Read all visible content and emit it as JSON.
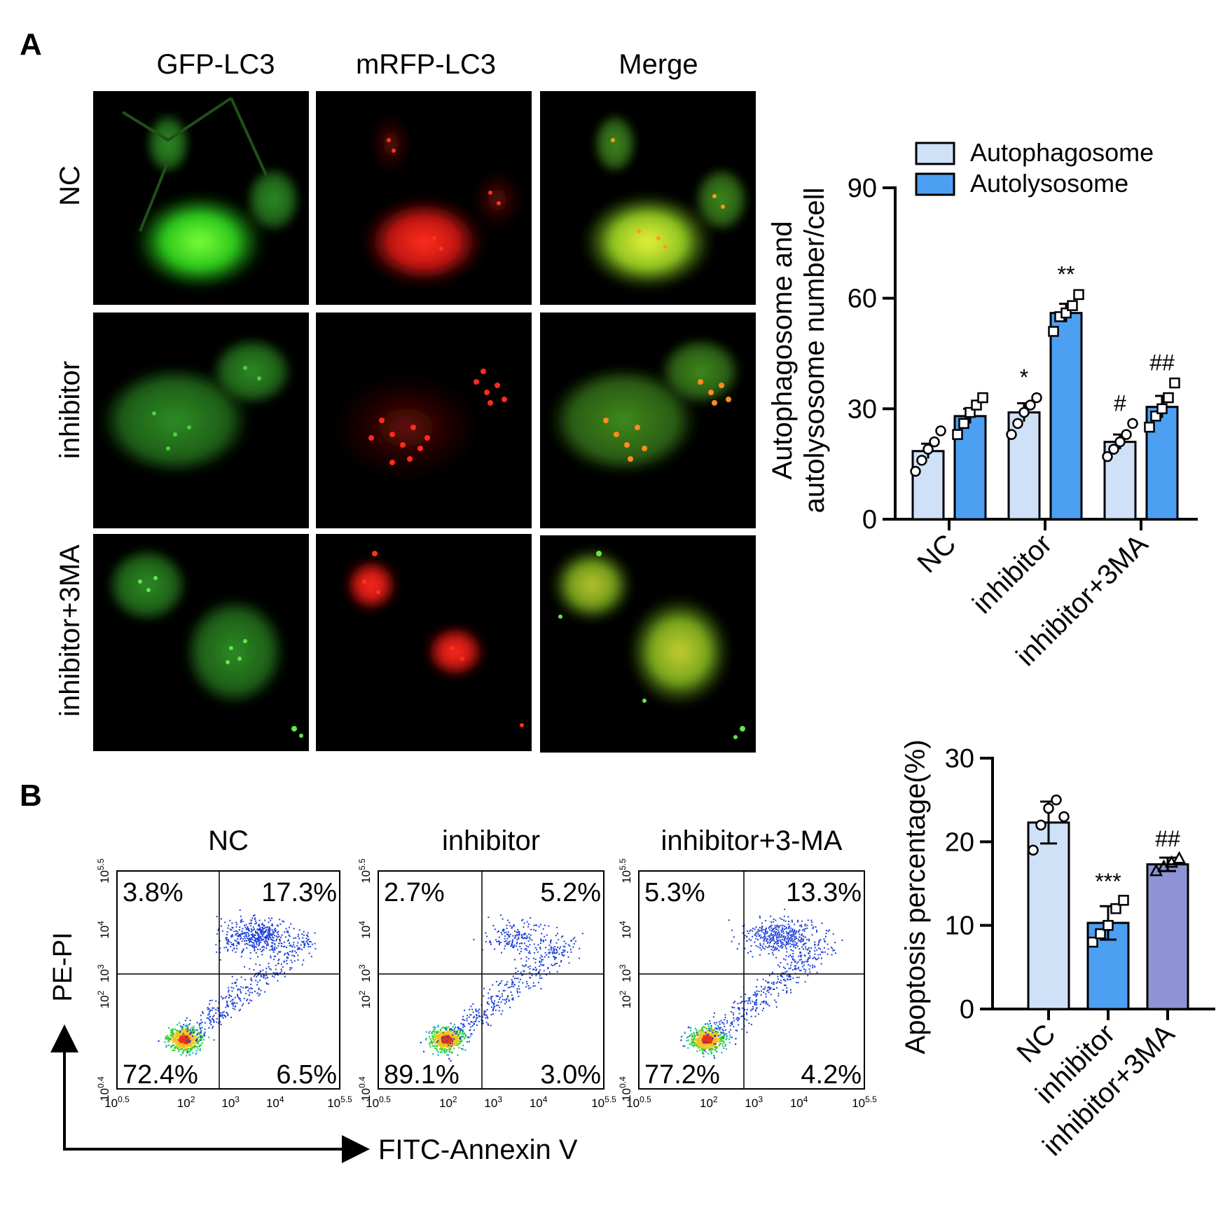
{
  "panel_a": {
    "label": "A",
    "columns": [
      "GFP-LC3",
      "mRFP-LC3",
      "Merge"
    ],
    "rows": [
      "NC",
      "inhibitor",
      "inhibitor+3MA"
    ]
  },
  "panel_b": {
    "label": "B",
    "flow_titles": [
      "NC",
      "inhibitor",
      "inhibitor+3-MA"
    ],
    "quadrants": [
      {
        "ul": "3.8%",
        "ur": "17.3%",
        "ll": "72.4%",
        "lr": "6.5%"
      },
      {
        "ul": "2.7%",
        "ur": "5.2%",
        "ll": "89.1%",
        "lr": "3.0%"
      },
      {
        "ul": "5.3%",
        "ur": "13.3%",
        "ll": "77.2%",
        "lr": "4.2%"
      }
    ],
    "flow_x_ticks": [
      {
        "base": "10",
        "exp": "0.5"
      },
      {
        "base": "10",
        "exp": "2"
      },
      {
        "base": "10",
        "exp": "3"
      },
      {
        "base": "10",
        "exp": "4"
      },
      {
        "base": "10",
        "exp": "5.5"
      }
    ],
    "flow_y_ticks": [
      {
        "base": "10",
        "exp": "0.4"
      },
      {
        "base": "10",
        "exp": "2"
      },
      {
        "base": "10",
        "exp": "3"
      },
      {
        "base": "10",
        "exp": "4"
      },
      {
        "base": "10",
        "exp": "5.5"
      }
    ],
    "flow_y_axis_label": "PE-PI",
    "flow_x_axis_label": "FITC-Annexin V"
  },
  "chart_data": [
    {
      "type": "bar",
      "categories": [
        "NC",
        "inhibitor",
        "inhibitor+3MA"
      ],
      "series": [
        {
          "name": "Autophagosome",
          "color": "#cfe1f7",
          "values": [
            18.5,
            29,
            21
          ],
          "errors": [
            2,
            2.5,
            2
          ],
          "points": [
            [
              13,
              16,
              19,
              21,
              24
            ],
            [
              23,
              26,
              29,
              31,
              33
            ],
            [
              17,
              19,
              21,
              23,
              26
            ]
          ]
        },
        {
          "name": "Autolysosome",
          "color": "#4d9ff2",
          "values": [
            28,
            56,
            30.5
          ],
          "errors": [
            2,
            2.5,
            3
          ],
          "points": [
            [
              23,
              26,
              29,
              31,
              33
            ],
            [
              51,
              55,
              56,
              58,
              61
            ],
            [
              25,
              28,
              30,
              33,
              37
            ]
          ]
        }
      ],
      "annotations": [
        {
          "category": 1,
          "series": 0,
          "text": "*"
        },
        {
          "category": 1,
          "series": 1,
          "text": "**"
        },
        {
          "category": 2,
          "series": 0,
          "text": "#"
        },
        {
          "category": 2,
          "series": 1,
          "text": "##"
        }
      ],
      "title": "",
      "xlabel": "",
      "ylabel": "Autophagosome and autolysosome number/cell",
      "ylabel_lines": [
        "Autophagosome and",
        "autolysosome number/cell"
      ],
      "ylim": [
        0,
        90
      ],
      "yticks": [
        0,
        30,
        60,
        90
      ],
      "legend": "top-right",
      "grid": false
    },
    {
      "type": "bar",
      "categories": [
        "NC",
        "inhibitor",
        "inhibitor+3MA"
      ],
      "series": [
        {
          "values": [
            22.3,
            10.3,
            17.3
          ],
          "errors": [
            2.5,
            2,
            0.8
          ],
          "colors": [
            "#cfe1f7",
            "#4d9ff2",
            "#8e94d3"
          ],
          "points": [
            [
              19,
              22,
              24,
              25,
              23
            ],
            [
              8,
              9,
              10,
              12,
              13
            ],
            [
              16.5,
              17,
              17.5,
              18
            ]
          ]
        }
      ],
      "annotations": [
        {
          "category": 1,
          "series": 0,
          "text": "***"
        },
        {
          "category": 2,
          "series": 0,
          "text": "##"
        }
      ],
      "title": "",
      "xlabel": "",
      "ylabel": "Apoptosis percentage(%)",
      "ylim": [
        0,
        30
      ],
      "yticks": [
        0,
        10,
        20,
        30
      ],
      "grid": false
    }
  ]
}
